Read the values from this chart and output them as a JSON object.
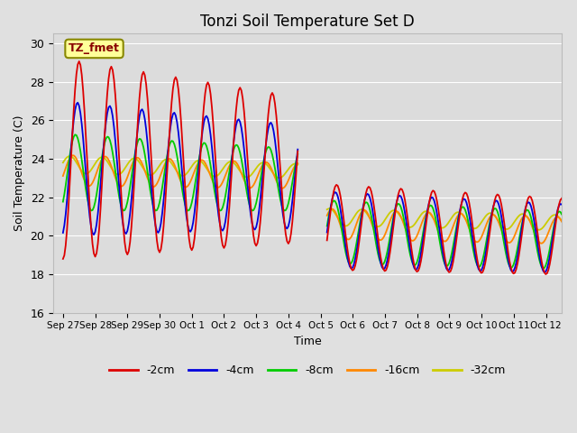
{
  "title": "Tonzi Soil Temperature Set D",
  "xlabel": "Time",
  "ylabel": "Soil Temperature (C)",
  "ylim": [
    16,
    30.5
  ],
  "xlim": [
    -0.3,
    15.5
  ],
  "legend_label": "TZ_fmet",
  "depths": [
    "-2cm",
    "-4cm",
    "-8cm",
    "-16cm",
    "-32cm"
  ],
  "colors": [
    "#dd0000",
    "#0000dd",
    "#00cc00",
    "#ff8800",
    "#cccc00"
  ],
  "x_tick_labels": [
    "Sep 27",
    "Sep 28",
    "Sep 29",
    "Sep 30",
    "Oct 1",
    "Oct 2",
    "Oct 3",
    "Oct 4",
    "Oct 5",
    "Oct 6",
    "Oct 7",
    "Oct 8",
    "Oct 9",
    "Oct 10",
    "Oct 11",
    "Oct 12"
  ],
  "background_color": "#e0e0e0",
  "plot_background": "#dcdcdc",
  "grid_color": "#ffffff"
}
